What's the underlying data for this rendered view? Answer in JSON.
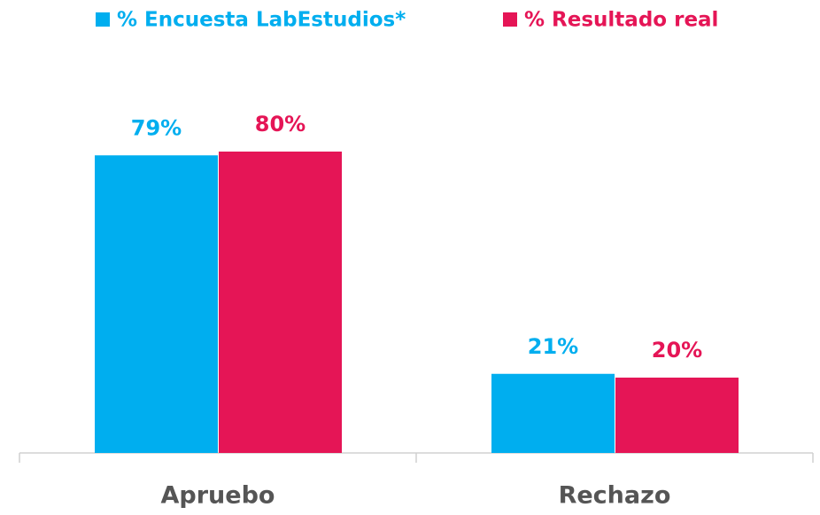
{
  "chart_data": {
    "type": "bar",
    "categories": [
      "Apruebo",
      "Rechazo"
    ],
    "series": [
      {
        "name": "% Encuesta LabEstudios*",
        "color": "#00aeef",
        "values": [
          79,
          21
        ],
        "value_labels": [
          "79%",
          "21%"
        ]
      },
      {
        "name": "% Resultado real",
        "color": "#e51556",
        "values": [
          80,
          20
        ],
        "value_labels": [
          "80%",
          "20%"
        ]
      }
    ]
  }
}
